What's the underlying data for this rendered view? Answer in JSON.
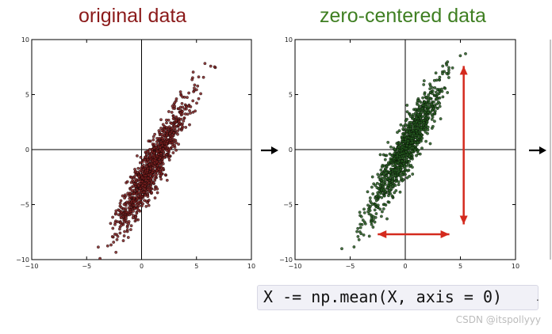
{
  "titles": {
    "left": "original data",
    "middle": "zero-centered data"
  },
  "colors": {
    "left_title": "#8b1a1a",
    "middle_title": "#3f7f22",
    "left_points": "#7a1e1e",
    "middle_points": "#245a1f",
    "arrows": "#d42a1e"
  },
  "chart_data": [
    {
      "type": "scatter",
      "title": "original data",
      "xlim": [
        -10,
        10
      ],
      "ylim": [
        -10,
        10
      ],
      "xticks": [
        "−10",
        "−5",
        "0",
        "5",
        "10"
      ],
      "yticks": [
        "10",
        "5",
        "0",
        "−5",
        "−10"
      ],
      "grid": false,
      "point_cloud": {
        "mean_x": 1.0,
        "mean_y": -1.5,
        "std_along": 3.4,
        "std_across": 0.55,
        "angle_deg": 62,
        "count": 1000
      }
    },
    {
      "type": "scatter",
      "title": "zero-centered data",
      "xlim": [
        -10,
        10
      ],
      "ylim": [
        -10,
        10
      ],
      "xticks": [
        "−10",
        "−5",
        "0",
        "5",
        "10"
      ],
      "yticks": [
        "10",
        "5",
        "0",
        "−5",
        "−10"
      ],
      "grid": false,
      "point_cloud": {
        "mean_x": 0,
        "mean_y": 0,
        "std_along": 3.4,
        "std_across": 0.55,
        "angle_deg": 62,
        "count": 1000
      },
      "annotations": [
        {
          "type": "double-arrow",
          "from": [
            -2.5,
            -7.7
          ],
          "to": [
            4,
            -7.7
          ]
        },
        {
          "type": "double-arrow",
          "from": [
            5.3,
            7.6
          ],
          "to": [
            5.3,
            -6.8
          ]
        }
      ]
    }
  ],
  "code": "X -= np.mean(X, axis = 0)",
  "watermark": "CSDN @itspollyyy"
}
